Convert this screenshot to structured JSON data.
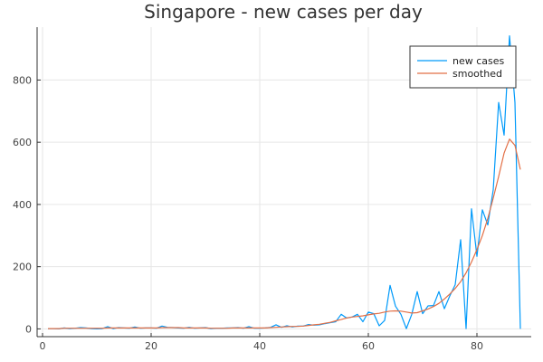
{
  "chart_data": {
    "type": "line",
    "title": "Singapore - new cases per day",
    "xlabel": "",
    "ylabel": "",
    "xlim": [
      -1,
      90
    ],
    "ylim": [
      -25,
      970
    ],
    "xticks": [
      0,
      20,
      40,
      60,
      80
    ],
    "yticks": [
      0,
      200,
      400,
      600,
      800
    ],
    "grid": true,
    "legend_position": "top-right",
    "series": [
      {
        "name": "new cases",
        "color": "#009AFA",
        "x": [
          1,
          2,
          3,
          4,
          5,
          6,
          7,
          8,
          9,
          10,
          11,
          12,
          13,
          14,
          15,
          16,
          17,
          18,
          19,
          20,
          21,
          22,
          23,
          24,
          25,
          26,
          27,
          28,
          29,
          30,
          31,
          32,
          33,
          34,
          35,
          36,
          37,
          38,
          39,
          40,
          41,
          42,
          43,
          44,
          45,
          46,
          47,
          48,
          49,
          50,
          51,
          52,
          53,
          54,
          55,
          56,
          57,
          58,
          59,
          60,
          61,
          62,
          63,
          64,
          65,
          66,
          67,
          68,
          69,
          70,
          71,
          72,
          73,
          74,
          75,
          76,
          77,
          78,
          79,
          80,
          81,
          82,
          83,
          84,
          85,
          86,
          87,
          88
        ],
        "values": [
          1,
          1,
          0,
          3,
          1,
          2,
          4,
          3,
          1,
          0,
          1,
          7,
          1,
          4,
          3,
          2,
          6,
          2,
          3,
          3,
          2,
          9,
          5,
          4,
          3,
          2,
          5,
          2,
          3,
          4,
          1,
          2,
          2,
          3,
          3,
          4,
          2,
          7,
          2,
          2,
          3,
          5,
          13,
          5,
          10,
          6,
          9,
          9,
          14,
          12,
          13,
          17,
          20,
          23,
          47,
          35,
          38,
          47,
          23,
          54,
          49,
          10,
          27,
          140,
          73,
          47,
          1,
          47,
          120,
          49,
          74,
          75,
          120,
          65,
          106,
          142,
          287,
          1,
          386,
          233,
          383,
          334,
          447,
          728,
          623,
          942,
          728,
          0
        ]
      },
      {
        "name": "smoothed",
        "color": "#E26F46",
        "x": [
          1,
          2,
          3,
          4,
          5,
          6,
          7,
          8,
          9,
          10,
          11,
          12,
          13,
          14,
          15,
          16,
          17,
          18,
          19,
          20,
          21,
          22,
          23,
          24,
          25,
          26,
          27,
          28,
          29,
          30,
          31,
          32,
          33,
          34,
          35,
          36,
          37,
          38,
          39,
          40,
          41,
          42,
          43,
          44,
          45,
          46,
          47,
          48,
          49,
          50,
          51,
          52,
          53,
          54,
          55,
          56,
          57,
          58,
          59,
          60,
          61,
          62,
          63,
          64,
          65,
          66,
          67,
          68,
          69,
          70,
          71,
          72,
          73,
          74,
          75,
          76,
          77,
          78,
          79,
          80,
          81,
          82,
          83,
          84,
          85,
          86,
          87,
          88
        ],
        "values": [
          1,
          1,
          1,
          2,
          2,
          2,
          2,
          2,
          2,
          2,
          2,
          3,
          3,
          3,
          3,
          3,
          3,
          3,
          3,
          3,
          3,
          4,
          4,
          4,
          4,
          3,
          3,
          3,
          3,
          3,
          2,
          2,
          2,
          2,
          3,
          3,
          3,
          3,
          3,
          3,
          3,
          4,
          5,
          6,
          7,
          8,
          8,
          9,
          11,
          13,
          15,
          18,
          21,
          26,
          30,
          35,
          38,
          40,
          42,
          45,
          48,
          50,
          54,
          57,
          58,
          57,
          54,
          51,
          52,
          58,
          64,
          72,
          82,
          96,
          112,
          130,
          152,
          180,
          215,
          255,
          300,
          355,
          420,
          490,
          565,
          610,
          590,
          512
        ]
      }
    ]
  }
}
